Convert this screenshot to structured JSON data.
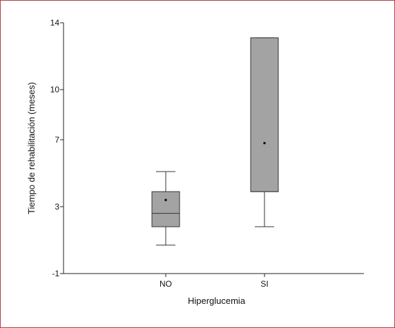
{
  "chart_data": {
    "type": "box",
    "title": "",
    "xlabel": "Hiperglucemia",
    "ylabel": "Tiempo de rehabilitación (meses)",
    "categories": [
      "NO",
      "SI"
    ],
    "ylim": [
      -1,
      14
    ],
    "yticks": [
      -1,
      3,
      7,
      10,
      14
    ],
    "grid": false,
    "boxes": [
      {
        "category": "NO",
        "whisker_low": 0.7,
        "q1": 1.8,
        "median": 2.6,
        "q3": 3.9,
        "whisker_high": 5.1,
        "mean": 3.4
      },
      {
        "category": "SI",
        "whisker_low": 1.8,
        "q1": 3.9,
        "median": 3.9,
        "q3": 13.1,
        "whisker_high": 13.1,
        "mean": 6.8
      }
    ],
    "colors": {
      "box_fill": "#a3a3a3",
      "line": "#333333",
      "frame": "#b23a48"
    }
  }
}
